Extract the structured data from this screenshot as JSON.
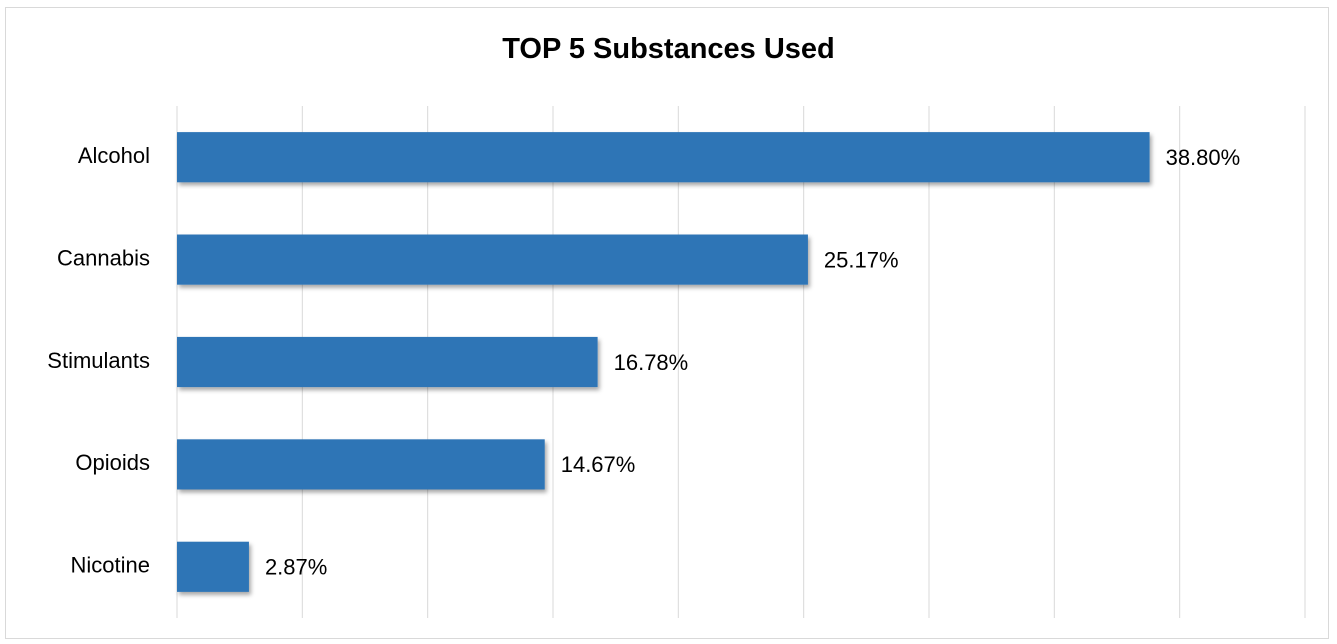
{
  "chart_data": {
    "type": "bar",
    "orientation": "horizontal",
    "title": "TOP 5 Substances Used",
    "xlabel": "",
    "ylabel": "",
    "categories": [
      "Alcohol",
      "Cannabis",
      "Stimulants",
      "Opioids",
      "Nicotine"
    ],
    "values": [
      38.8,
      25.17,
      16.78,
      14.67,
      2.87
    ],
    "value_labels": [
      "38.80%",
      "25.17%",
      "16.78%",
      "14.67%",
      "2.87%"
    ],
    "xlim": [
      0,
      45
    ],
    "grid": true,
    "legend": "none",
    "bar_color": "#2e75b6",
    "gridline_color": "#d9d9d9"
  }
}
